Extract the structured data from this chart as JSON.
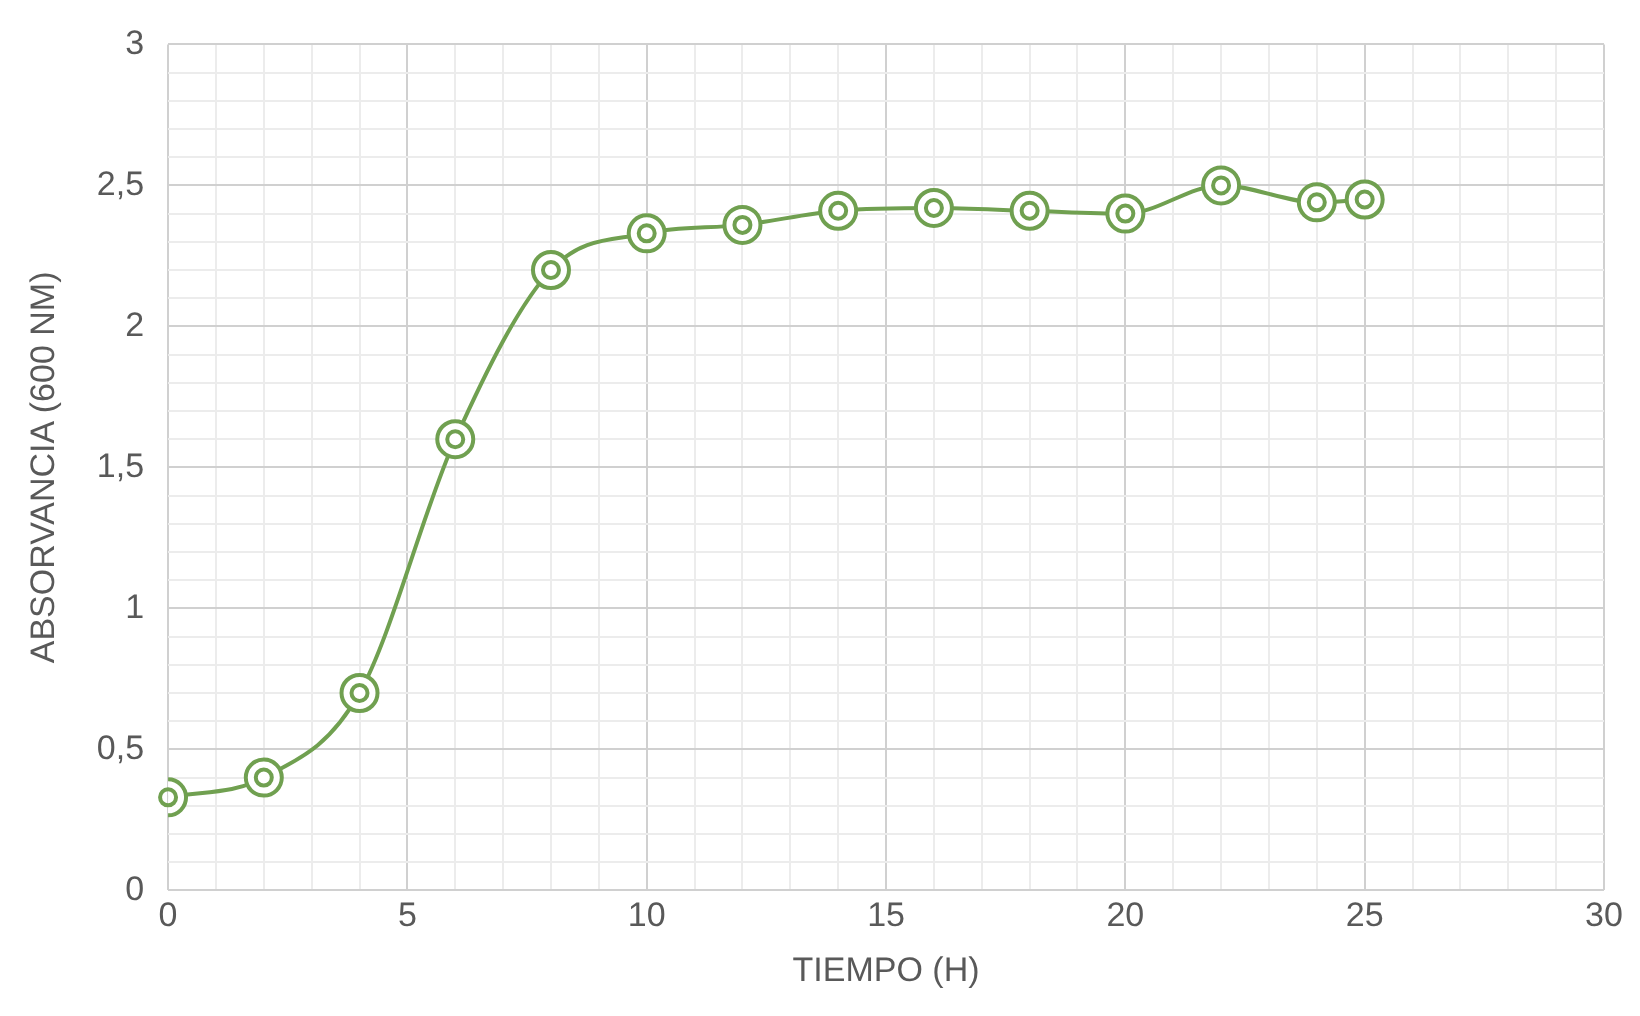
{
  "chart_data": {
    "type": "line",
    "xlabel": "TIEMPO (H)",
    "ylabel": "ABSORVANCIA (600 NM)",
    "x": [
      0,
      2,
      4,
      6,
      8,
      10,
      12,
      14,
      16,
      18,
      20,
      22,
      24,
      25
    ],
    "series": [
      {
        "color": "#70a050",
        "values": [
          0.33,
          0.4,
          0.7,
          1.6,
          2.2,
          2.33,
          2.36,
          2.41,
          2.42,
          2.41,
          2.4,
          2.5,
          2.44,
          2.45
        ]
      }
    ],
    "xlim": [
      0,
      30
    ],
    "xticks": [
      0,
      {
        "value": 1,
        "label": null
      },
      {
        "value": 2,
        "label": null
      },
      {
        "value": 3,
        "label": null
      },
      {
        "value": 4,
        "label": null
      },
      5,
      {
        "value": 6,
        "label": null
      },
      {
        "value": 7,
        "label": null
      },
      {
        "value": 8,
        "label": null
      },
      {
        "value": 9,
        "label": null
      },
      10,
      {
        "value": 11,
        "label": null
      },
      {
        "value": 12,
        "label": null
      },
      {
        "value": 13,
        "label": null
      },
      {
        "value": 14,
        "label": null
      },
      15,
      {
        "value": 16,
        "label": null
      },
      {
        "value": 17,
        "label": null
      },
      {
        "value": 18,
        "label": null
      },
      {
        "value": 19,
        "label": null
      },
      20,
      {
        "value": 21,
        "label": null
      },
      {
        "value": 22,
        "label": null
      },
      {
        "value": 23,
        "label": null
      },
      {
        "value": 24,
        "label": null
      },
      25,
      {
        "value": 26,
        "label": null
      },
      {
        "value": 27,
        "label": null
      },
      {
        "value": 28,
        "label": null
      },
      {
        "value": 29,
        "label": null
      },
      30
    ],
    "ylim": [
      0,
      3
    ],
    "yticks": [
      0,
      {
        "value": 0.1,
        "label": null
      },
      {
        "value": 0.2,
        "label": null
      },
      {
        "value": 0.3,
        "label": null
      },
      {
        "value": 0.4,
        "label": null
      },
      {
        "value": 0.5,
        "label": "0,5"
      },
      {
        "value": 0.6,
        "label": null
      },
      {
        "value": 0.7,
        "label": null
      },
      {
        "value": 0.8,
        "label": null
      },
      {
        "value": 0.9,
        "label": null
      },
      1,
      {
        "value": 1.1,
        "label": null
      },
      {
        "value": 1.2,
        "label": null
      },
      {
        "value": 1.3,
        "label": null
      },
      {
        "value": 1.4,
        "label": null
      },
      {
        "value": 1.5,
        "label": "1,5"
      },
      {
        "value": 1.6,
        "label": null
      },
      {
        "value": 1.7,
        "label": null
      },
      {
        "value": 1.8,
        "label": null
      },
      {
        "value": 1.9,
        "label": null
      },
      2,
      {
        "value": 2.1,
        "label": null
      },
      {
        "value": 2.2,
        "label": null
      },
      {
        "value": 2.3,
        "label": null
      },
      {
        "value": 2.4,
        "label": null
      },
      {
        "value": 2.5,
        "label": "2,5"
      },
      {
        "value": 2.6,
        "label": null
      },
      {
        "value": 2.7,
        "label": null
      },
      {
        "value": 2.8,
        "label": null
      },
      {
        "value": 2.9,
        "label": null
      },
      3
    ],
    "grid": true,
    "legend": false,
    "marker": "circle",
    "line_style": "solid"
  }
}
